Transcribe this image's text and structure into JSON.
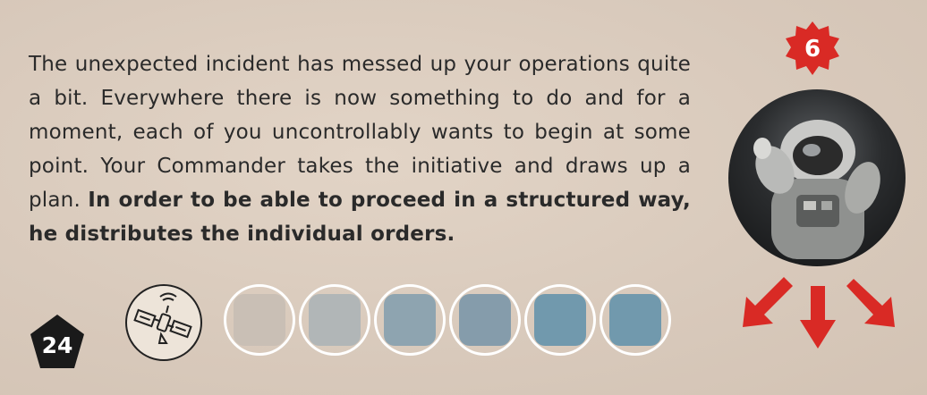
{
  "card": {
    "story_normal": "The unexpected incident has messed up your operations quite a bit. Everywhere there is now something to do and for a moment, each of you uncontrollably wants to begin at some point. Your Commander takes the initiative and draws up a plan.",
    "story_bold": "In order to be able to proceed in a structured way, he distributes the individual orders.",
    "level_number": "6",
    "card_number": "24",
    "satellite_icon": "satellite-icon",
    "portrait_icon": "astronaut-portrait",
    "arrow_icon": "down-arrow-icon",
    "slots": [
      {
        "color": "#c9bfb5"
      },
      {
        "color": "#b1b6b7"
      },
      {
        "color": "#8ea4b0"
      },
      {
        "color": "#859cab"
      },
      {
        "color": "#7199ad"
      },
      {
        "color": "#7199ad"
      }
    ],
    "colors": {
      "accent_red": "#d92a25",
      "pentagon_black": "#1a1a1a",
      "text": "#2a2a2a"
    }
  }
}
